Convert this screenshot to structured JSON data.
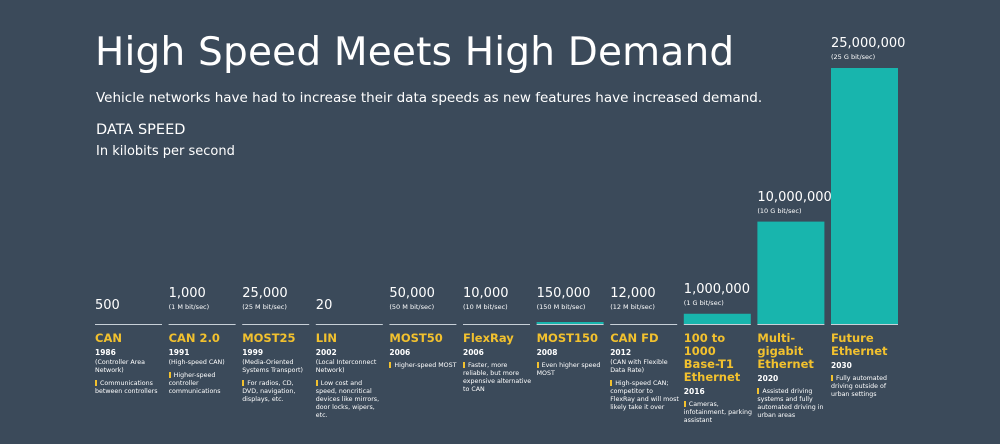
{
  "title": "High Speed Meets High Demand",
  "subtitle": "Vehicle networks have had to increase their data speeds as new features have increased demand.",
  "axis_title": "DATA SPEED",
  "axis_unit": "In kilobits per second",
  "colors": {
    "background": "#3b4a5a",
    "bar": "#18b5ad",
    "accent": "#f2c12e",
    "baseline": "#c8d0d8"
  },
  "chart_data": {
    "type": "bar",
    "categories": [
      "CAN",
      "CAN 2.0",
      "MOST25",
      "LIN",
      "MOST50",
      "FlexRay",
      "MOST150",
      "CAN FD",
      "100 to 1000 Base-T1 Ethernet",
      "Multi-gigabit Ethernet",
      "Future Ethernet"
    ],
    "values": [
      500,
      1000,
      25000,
      20,
      50000,
      10000,
      150000,
      12000,
      1000000,
      10000000,
      25000000
    ],
    "ylim": [
      0,
      25000000
    ],
    "ylabel": "DATA SPEED",
    "items": [
      {
        "value_label": "500",
        "value_sub": "",
        "name": "CAN",
        "year": "1986",
        "full": "(Controller Area Network)",
        "note": "Communications between controllers"
      },
      {
        "value_label": "1,000",
        "value_sub": "(1 M bit/sec)",
        "name": "CAN 2.0",
        "year": "1991",
        "full": "(High-speed CAN)",
        "note": "Higher-speed controller communications"
      },
      {
        "value_label": "25,000",
        "value_sub": "(25 M bit/sec)",
        "name": "MOST25",
        "year": "1999",
        "full": "(Media-Oriented Systems Transport)",
        "note": "For radios, CD, DVD, navigation, displays, etc."
      },
      {
        "value_label": "20",
        "value_sub": "",
        "name": "LIN",
        "year": "2002",
        "full": "(Local Interconnect Network)",
        "note": "Low cost and speed, noncritical devices like mirrors, door locks, wipers, etc."
      },
      {
        "value_label": "50,000",
        "value_sub": "(50 M bit/sec)",
        "name": "MOST50",
        "year": "2006",
        "full": "",
        "note": "Higher-speed MOST"
      },
      {
        "value_label": "10,000",
        "value_sub": "(10 M bit/sec)",
        "name": "FlexRay",
        "year": "2006",
        "full": "",
        "note": "Faster, more reliable, but more expensive alternative to CAN"
      },
      {
        "value_label": "150,000",
        "value_sub": "(150 M bit/sec)",
        "name": "MOST150",
        "year": "2008",
        "full": "",
        "note": "Even higher speed MOST"
      },
      {
        "value_label": "12,000",
        "value_sub": "(12 M bit/sec)",
        "name": "CAN FD",
        "year": "2012",
        "full": "(CAN with Flexible Data Rate)",
        "note": "High-speed CAN; competitor to FlexRay and will most likely take it over"
      },
      {
        "value_label": "1,000,000",
        "value_sub": "(1 G bit/sec)",
        "name": "100 to 1000 Base-T1 Ethernet",
        "year": "2016",
        "full": "",
        "note": "Cameras, infotainment, parking assistant"
      },
      {
        "value_label": "10,000,000",
        "value_sub": "(10 G bit/sec)",
        "name": "Multi-gigabit Ethernet",
        "year": "2020",
        "full": "",
        "note": "Assisted driving systems and fully automated driving in urban areas"
      },
      {
        "value_label": "25,000,000",
        "value_sub": "(25 G bit/sec)",
        "name": "Future Ethernet",
        "year": "2030",
        "full": "",
        "note": "Fully automated driving outside of urban settings"
      }
    ]
  }
}
